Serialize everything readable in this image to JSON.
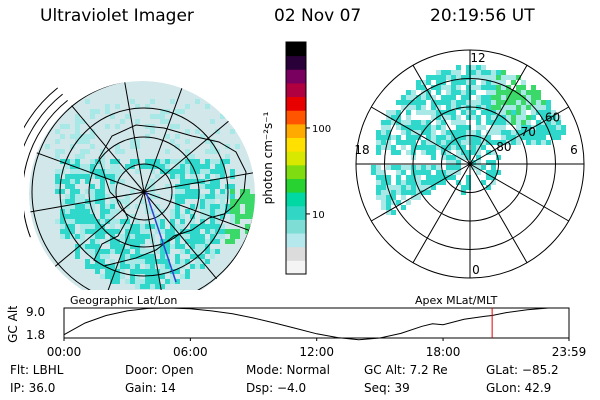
{
  "header": {
    "instrument": "Ultraviolet Imager",
    "date": "02 Nov 07",
    "time": "20:19:56 UT"
  },
  "colors": {
    "globe_fill": "#d2e7ea",
    "aurora": "#30d8cc",
    "aurora_light": "#a8e8e6",
    "aurora_edge": "#3bd86a",
    "coast": "#000000",
    "track": "#3040d0",
    "cursor_line": "#e00000"
  },
  "colorbar": {
    "unit_label": "photon cm⁻²s⁻¹",
    "ticks": [
      {
        "label": "100",
        "value": 100
      },
      {
        "label": "10",
        "value": 10
      }
    ],
    "range": [
      2,
      1000
    ],
    "colors": [
      "#f4f4f4",
      "#dcdcdc",
      "#b4e8ec",
      "#7eded6",
      "#32d6c4",
      "#00d8a4",
      "#28d230",
      "#7fdc10",
      "#d8e800",
      "#ffe000",
      "#ffaa00",
      "#ff5500",
      "#e80000",
      "#b00040",
      "#7a0060",
      "#2a0038",
      "#000000"
    ]
  },
  "maps": {
    "geo_label": "Geographic Lat/Lon",
    "apex_label": "Apex MLat/MLT",
    "apex_lat_labels": [
      {
        "value": 60,
        "text": "60"
      },
      {
        "value": 70,
        "text": "70"
      },
      {
        "value": 80,
        "text": "80"
      }
    ],
    "apex_mlt_labels": [
      {
        "hour": 12,
        "text": "12"
      },
      {
        "hour": 18,
        "text": "18"
      },
      {
        "hour": 6,
        "text": "6"
      },
      {
        "hour": 0,
        "text": "0"
      }
    ]
  },
  "orbit_plot": {
    "ylabel": "GC Alt",
    "yticks": [
      "9.0",
      "1.8"
    ],
    "xticks": [
      "00:00",
      "06:00",
      "12:00",
      "18:00",
      "23:59"
    ],
    "cursor_label": "20:19:56",
    "series_altitude_re": {
      "hours": [
        0,
        1,
        2,
        3,
        4,
        5,
        6,
        7,
        8,
        9,
        10,
        11,
        12,
        13,
        14,
        15,
        16,
        17,
        17.5,
        18,
        19,
        20,
        20.33,
        21,
        22,
        23,
        23.98
      ],
      "values": [
        2.6,
        5.4,
        7.2,
        8.3,
        8.9,
        9.0,
        8.8,
        8.3,
        7.6,
        6.6,
        5.4,
        4.1,
        2.8,
        1.9,
        1.4,
        1.8,
        2.9,
        4.6,
        5.2,
        5.0,
        6.3,
        7.0,
        7.2,
        7.9,
        8.6,
        9.0,
        9.0
      ]
    },
    "cursor_hour": 20.33
  },
  "footer": [
    [
      {
        "text": "Flt: LBHL"
      },
      {
        "text": "Door: Open"
      },
      {
        "text": "Mode: Normal"
      },
      {
        "text": "GC Alt: 7.2 Re"
      },
      {
        "text": "GLat: −85.2"
      }
    ],
    [
      {
        "text": "IP: 36.0"
      },
      {
        "text": "Gain: 14"
      },
      {
        "text": "Dsp:   −4.0"
      },
      {
        "text": "Seq: 39"
      },
      {
        "text": "GLon:  42.9"
      }
    ]
  ]
}
